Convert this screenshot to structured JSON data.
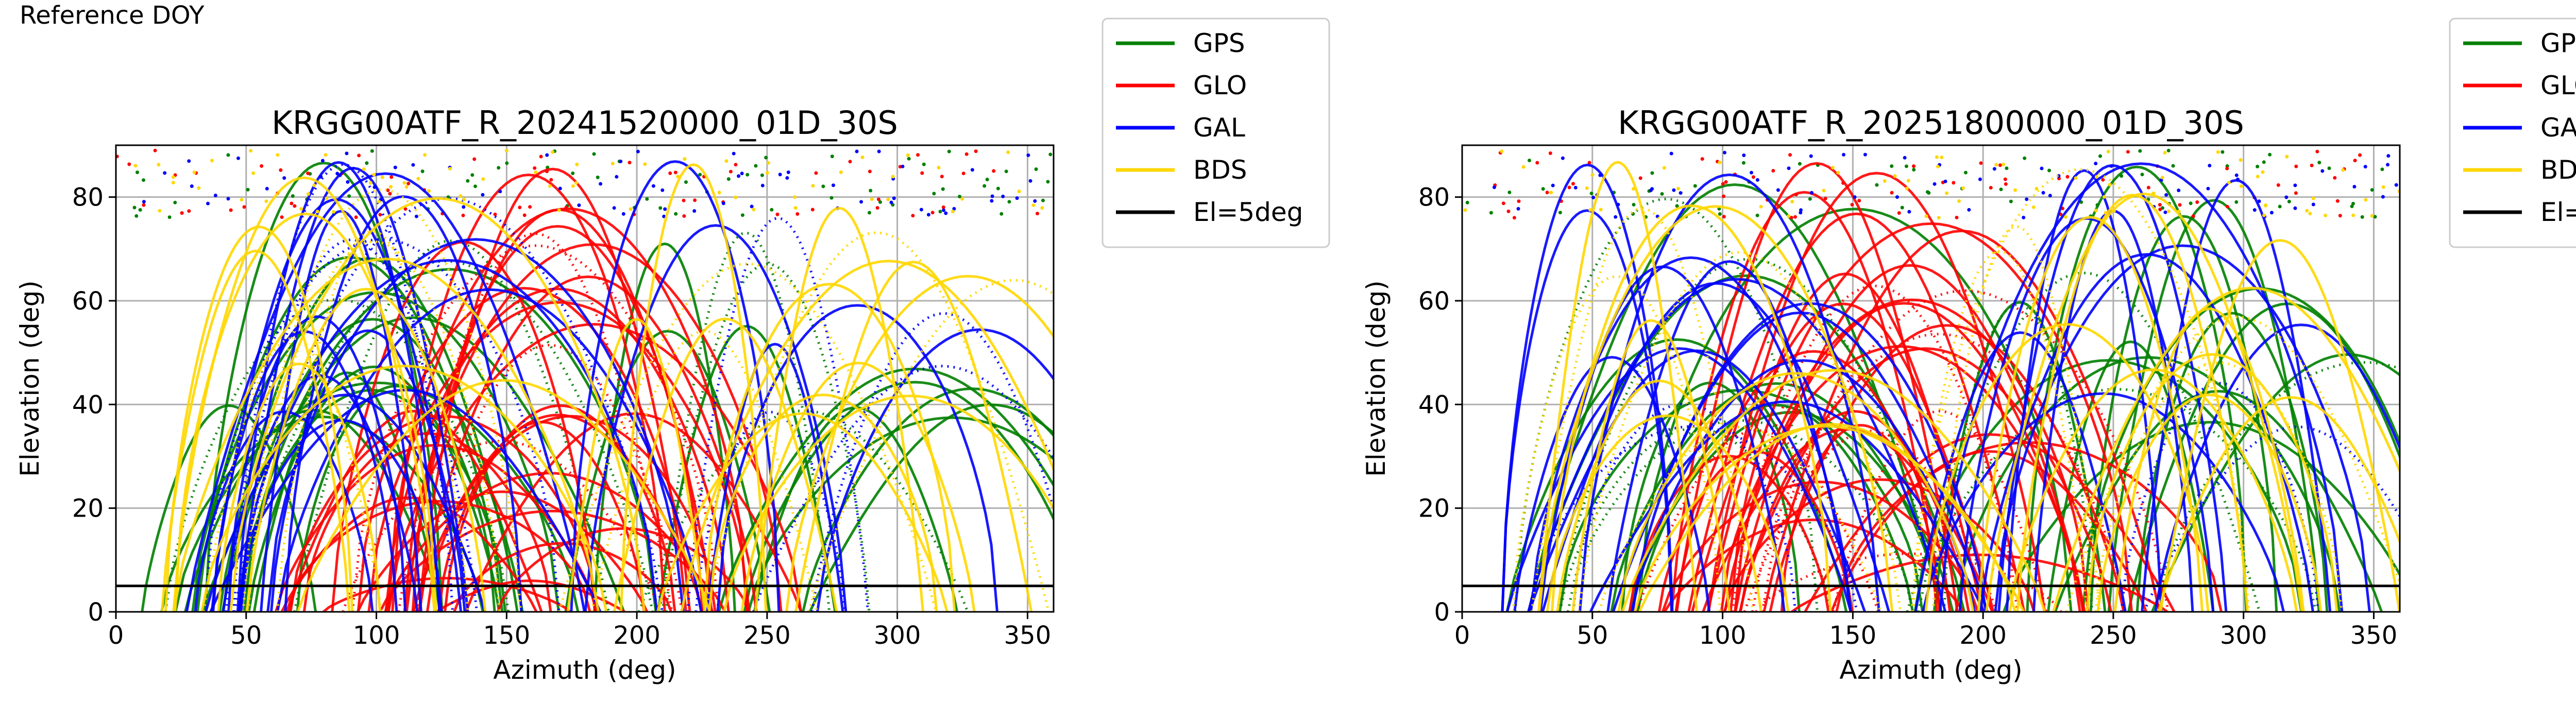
{
  "page": {
    "header_label": "Reference DOY"
  },
  "legend": {
    "items": [
      {
        "label": "GPS",
        "color": "#008000"
      },
      {
        "label": "GLO",
        "color": "#ff0000"
      },
      {
        "label": "GAL",
        "color": "#0000ff"
      },
      {
        "label": "BDS",
        "color": "#ffd700"
      },
      {
        "label": "El=5deg",
        "color": "#000000"
      }
    ]
  },
  "chart_data": [
    {
      "type": "scatter",
      "title": "KRGG00ATF_R_20241520000_01D_30S",
      "xlabel": "Azimuth (deg)",
      "ylabel": "Elevation (deg)",
      "xlim": [
        0,
        360
      ],
      "ylim": [
        0,
        90
      ],
      "xticks": [
        0,
        50,
        100,
        150,
        200,
        250,
        300,
        350
      ],
      "yticks": [
        0,
        20,
        40,
        60,
        80
      ],
      "grid": true,
      "legend_position": "outside-right",
      "reference_line": {
        "label": "El=5deg",
        "y": 5
      },
      "series": [
        {
          "name": "GPS",
          "color": "#008000",
          "seed": 11
        },
        {
          "name": "GLO",
          "color": "#ff0000",
          "seed": 23
        },
        {
          "name": "GAL",
          "color": "#0000ff",
          "seed": 37
        },
        {
          "name": "BDS",
          "color": "#ffd700",
          "seed": 41
        }
      ]
    },
    {
      "type": "scatter",
      "title": "KRGG00ATF_R_20251800000_01D_30S",
      "xlabel": "Azimuth (deg)",
      "ylabel": "Elevation (deg)",
      "xlim": [
        0,
        360
      ],
      "ylim": [
        0,
        90
      ],
      "xticks": [
        0,
        50,
        100,
        150,
        200,
        250,
        300,
        350
      ],
      "yticks": [
        0,
        20,
        40,
        60,
        80
      ],
      "grid": true,
      "legend_position": "outside-right",
      "reference_line": {
        "label": "El=5deg",
        "y": 5
      },
      "series": [
        {
          "name": "GPS",
          "color": "#008000",
          "seed": 13
        },
        {
          "name": "GLO",
          "color": "#ff0000",
          "seed": 29
        },
        {
          "name": "GAL",
          "color": "#0000ff",
          "seed": 31
        },
        {
          "name": "BDS",
          "color": "#ffd700",
          "seed": 47
        }
      ]
    }
  ]
}
